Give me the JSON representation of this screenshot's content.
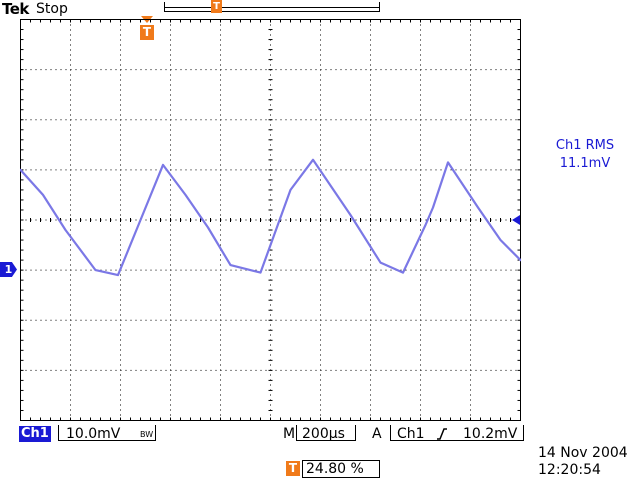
{
  "header": {
    "brand": "Tek",
    "run_state": "Stop",
    "record_marker_label": "T",
    "trigger_position_label": "T"
  },
  "measurement": {
    "title": "Ch1 RMS",
    "value": "11.1mV"
  },
  "channel_marker": {
    "label": "1"
  },
  "status_bar": {
    "channel_label": "Ch1",
    "channel_scale": "10.0mV",
    "bandwidth_label": "BW",
    "main_label": "M",
    "timebase": "200µs",
    "trigger_mode_label": "A",
    "trigger_source": "Ch1",
    "trigger_level": "10.2mV",
    "trigger_position_label": "T",
    "trigger_position_pct": "24.80 %"
  },
  "datetime": {
    "date": "14 Nov 2004",
    "time": "12:20:54"
  },
  "colors": {
    "channel": "#1a1ad4",
    "trace": "#7b78e6",
    "trigger": "#f07a1a",
    "grid": "#000000"
  },
  "icons": {
    "trigger_slope": "rising-edge-icon",
    "trigger_level": "left-arrow-icon",
    "ground_marker": "right-pointer-icon"
  },
  "chart_data": {
    "type": "line",
    "grid": true,
    "x_divisions": 10,
    "y_divisions": 8,
    "x_unit": "div",
    "y_unit": "div",
    "xlim": [
      0,
      10
    ],
    "ylim": [
      0,
      8
    ],
    "series": [
      {
        "x": [
          0,
          0.45,
          0.9,
          1.5,
          1.95,
          2.4,
          2.85,
          3.3,
          3.75,
          4.2,
          4.8,
          5.4,
          5.85,
          6.6,
          7.2,
          7.65,
          8.1,
          8.25,
          8.55,
          9.15,
          9.6,
          10
        ],
        "y": [
          5.0,
          4.5,
          3.8,
          3.0,
          2.9,
          4.0,
          5.1,
          4.5,
          3.85,
          3.1,
          2.95,
          4.6,
          5.2,
          4.1,
          3.15,
          2.95,
          3.9,
          4.25,
          5.15,
          4.25,
          3.6,
          3.2
        ]
      }
    ]
  }
}
